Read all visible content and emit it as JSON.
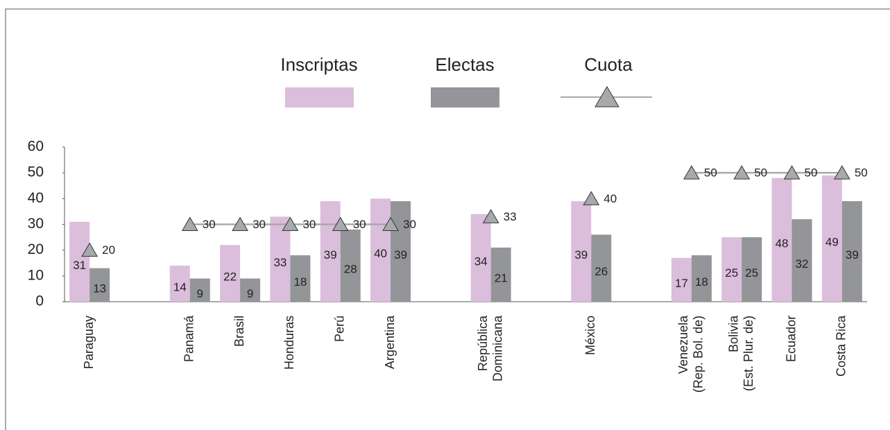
{
  "chart_data": {
    "type": "bar",
    "categories": [
      "Paraguay",
      null,
      "Panamá",
      "Brasil",
      "Honduras",
      "Perú",
      "Argentina",
      null,
      "República Dominicana",
      null,
      "México",
      null,
      "Venezuela (Rep. Bol. de)",
      "Bolivia (Est. Plur. de)",
      "Ecuador",
      "Costa Rica"
    ],
    "series": [
      {
        "name": "Inscriptas",
        "type": "bar",
        "color": "#dbbedb",
        "values": [
          31,
          null,
          14,
          22,
          33,
          39,
          40,
          null,
          34,
          null,
          39,
          null,
          17,
          25,
          48,
          49
        ]
      },
      {
        "name": "Electas",
        "type": "bar",
        "color": "#939598",
        "values": [
          13,
          null,
          9,
          9,
          18,
          28,
          39,
          null,
          21,
          null,
          26,
          null,
          18,
          25,
          32,
          39
        ]
      },
      {
        "name": "Cuota",
        "type": "line",
        "color": "#a7a9ac",
        "values": [
          20,
          null,
          30,
          30,
          30,
          30,
          30,
          null,
          33,
          null,
          40,
          null,
          50,
          50,
          50,
          50
        ]
      }
    ],
    "ylim": [
      0,
      60
    ],
    "yticks": [
      0,
      10,
      20,
      30,
      40,
      50,
      60
    ],
    "grid": false,
    "legend": "top"
  }
}
